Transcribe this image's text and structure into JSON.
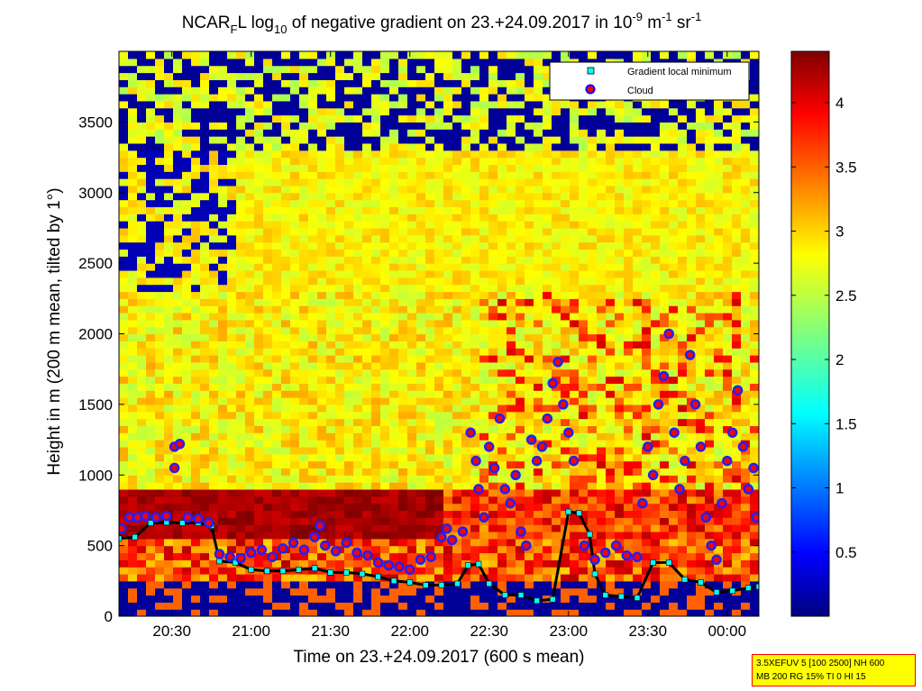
{
  "chart_data": {
    "type": "heatmap",
    "title": {
      "prefix": "NCAR",
      "sub1": "F",
      "mid1": "L log",
      "sub2": "10",
      "mid2": " of negative gradient on 23.+24.09.2017 in 10",
      "sup1": "-9",
      "mid3": " m",
      "sup2": "-1",
      "mid4": " sr",
      "sup3": "-1"
    },
    "xlabel": "Time on 23.+24.09.2017 (600 s mean)",
    "ylabel": "Height in m (200 m mean, tilted by 1°)",
    "x_ticks": [
      "20:30",
      "21:00",
      "21:30",
      "22:00",
      "22:30",
      "23:00",
      "23:30",
      "00:00"
    ],
    "x_tick_minutes": [
      1230,
      1260,
      1290,
      1320,
      1350,
      1380,
      1410,
      1440
    ],
    "xlim_minutes": [
      1210,
      1452
    ],
    "y_ticks": [
      0,
      500,
      1000,
      1500,
      2000,
      2500,
      3000,
      3500
    ],
    "ylim": [
      0,
      4000
    ],
    "colorbar": {
      "ticks": [
        0.5,
        1,
        1.5,
        2,
        2.5,
        3,
        3.5,
        4
      ],
      "range": [
        0,
        4.4
      ],
      "colormap": "jet"
    },
    "legend": {
      "position": "top-right",
      "entries": [
        {
          "label": "Gradient local minimum",
          "marker": "cyan-square"
        },
        {
          "label": "Cloud",
          "marker": "red-blue-circle"
        }
      ]
    },
    "series": [
      {
        "name": "Gradient local minimum",
        "points": [
          {
            "t": 1210,
            "h": 550
          },
          {
            "t": 1216,
            "h": 560
          },
          {
            "t": 1222,
            "h": 660
          },
          {
            "t": 1228,
            "h": 665
          },
          {
            "t": 1234,
            "h": 660
          },
          {
            "t": 1240,
            "h": 660
          },
          {
            "t": 1245,
            "h": 640
          },
          {
            "t": 1248,
            "h": 390
          },
          {
            "t": 1254,
            "h": 380
          },
          {
            "t": 1260,
            "h": 330
          },
          {
            "t": 1266,
            "h": 320
          },
          {
            "t": 1272,
            "h": 320
          },
          {
            "t": 1278,
            "h": 330
          },
          {
            "t": 1284,
            "h": 340
          },
          {
            "t": 1290,
            "h": 310
          },
          {
            "t": 1296,
            "h": 310
          },
          {
            "t": 1302,
            "h": 300
          },
          {
            "t": 1308,
            "h": 280
          },
          {
            "t": 1314,
            "h": 250
          },
          {
            "t": 1320,
            "h": 240
          },
          {
            "t": 1326,
            "h": 220
          },
          {
            "t": 1332,
            "h": 220
          },
          {
            "t": 1338,
            "h": 230
          },
          {
            "t": 1342,
            "h": 360
          },
          {
            "t": 1346,
            "h": 370
          },
          {
            "t": 1350,
            "h": 230
          },
          {
            "t": 1356,
            "h": 150
          },
          {
            "t": 1362,
            "h": 150
          },
          {
            "t": 1368,
            "h": 110
          },
          {
            "t": 1374,
            "h": 120
          },
          {
            "t": 1380,
            "h": 740
          },
          {
            "t": 1384,
            "h": 730
          },
          {
            "t": 1388,
            "h": 580
          },
          {
            "t": 1390,
            "h": 300
          },
          {
            "t": 1394,
            "h": 150
          },
          {
            "t": 1400,
            "h": 140
          },
          {
            "t": 1406,
            "h": 130
          },
          {
            "t": 1412,
            "h": 380
          },
          {
            "t": 1418,
            "h": 380
          },
          {
            "t": 1424,
            "h": 260
          },
          {
            "t": 1430,
            "h": 240
          },
          {
            "t": 1436,
            "h": 170
          },
          {
            "t": 1442,
            "h": 180
          },
          {
            "t": 1448,
            "h": 200
          },
          {
            "t": 1452,
            "h": 210
          }
        ]
      },
      {
        "name": "Cloud",
        "points": [
          {
            "t": 1211,
            "h": 620
          },
          {
            "t": 1214,
            "h": 700
          },
          {
            "t": 1217,
            "h": 700
          },
          {
            "t": 1220,
            "h": 710
          },
          {
            "t": 1224,
            "h": 700
          },
          {
            "t": 1228,
            "h": 710
          },
          {
            "t": 1231,
            "h": 1200
          },
          {
            "t": 1231,
            "h": 1050
          },
          {
            "t": 1233,
            "h": 1220
          },
          {
            "t": 1236,
            "h": 700
          },
          {
            "t": 1240,
            "h": 690
          },
          {
            "t": 1244,
            "h": 660
          },
          {
            "t": 1248,
            "h": 440
          },
          {
            "t": 1252,
            "h": 420
          },
          {
            "t": 1256,
            "h": 410
          },
          {
            "t": 1260,
            "h": 450
          },
          {
            "t": 1264,
            "h": 470
          },
          {
            "t": 1268,
            "h": 420
          },
          {
            "t": 1272,
            "h": 480
          },
          {
            "t": 1276,
            "h": 520
          },
          {
            "t": 1280,
            "h": 470
          },
          {
            "t": 1284,
            "h": 560
          },
          {
            "t": 1286,
            "h": 640
          },
          {
            "t": 1288,
            "h": 500
          },
          {
            "t": 1292,
            "h": 460
          },
          {
            "t": 1296,
            "h": 520
          },
          {
            "t": 1300,
            "h": 450
          },
          {
            "t": 1304,
            "h": 430
          },
          {
            "t": 1308,
            "h": 380
          },
          {
            "t": 1312,
            "h": 360
          },
          {
            "t": 1316,
            "h": 350
          },
          {
            "t": 1320,
            "h": 330
          },
          {
            "t": 1324,
            "h": 400
          },
          {
            "t": 1328,
            "h": 420
          },
          {
            "t": 1332,
            "h": 560
          },
          {
            "t": 1334,
            "h": 620
          },
          {
            "t": 1336,
            "h": 540
          },
          {
            "t": 1340,
            "h": 600
          },
          {
            "t": 1343,
            "h": 1300
          },
          {
            "t": 1345,
            "h": 1100
          },
          {
            "t": 1346,
            "h": 900
          },
          {
            "t": 1348,
            "h": 700
          },
          {
            "t": 1350,
            "h": 1200
          },
          {
            "t": 1352,
            "h": 1050
          },
          {
            "t": 1354,
            "h": 1400
          },
          {
            "t": 1356,
            "h": 900
          },
          {
            "t": 1358,
            "h": 800
          },
          {
            "t": 1360,
            "h": 1000
          },
          {
            "t": 1362,
            "h": 600
          },
          {
            "t": 1364,
            "h": 500
          },
          {
            "t": 1366,
            "h": 1250
          },
          {
            "t": 1368,
            "h": 1100
          },
          {
            "t": 1370,
            "h": 1200
          },
          {
            "t": 1372,
            "h": 1400
          },
          {
            "t": 1374,
            "h": 1650
          },
          {
            "t": 1376,
            "h": 1800
          },
          {
            "t": 1378,
            "h": 1500
          },
          {
            "t": 1380,
            "h": 1300
          },
          {
            "t": 1382,
            "h": 1100
          },
          {
            "t": 1386,
            "h": 500
          },
          {
            "t": 1390,
            "h": 400
          },
          {
            "t": 1394,
            "h": 450
          },
          {
            "t": 1398,
            "h": 500
          },
          {
            "t": 1402,
            "h": 430
          },
          {
            "t": 1406,
            "h": 420
          },
          {
            "t": 1408,
            "h": 800
          },
          {
            "t": 1410,
            "h": 1200
          },
          {
            "t": 1412,
            "h": 1000
          },
          {
            "t": 1414,
            "h": 1500
          },
          {
            "t": 1416,
            "h": 1700
          },
          {
            "t": 1418,
            "h": 2000
          },
          {
            "t": 1420,
            "h": 1300
          },
          {
            "t": 1422,
            "h": 900
          },
          {
            "t": 1424,
            "h": 1100
          },
          {
            "t": 1426,
            "h": 1850
          },
          {
            "t": 1428,
            "h": 1500
          },
          {
            "t": 1430,
            "h": 1200
          },
          {
            "t": 1432,
            "h": 700
          },
          {
            "t": 1434,
            "h": 500
          },
          {
            "t": 1436,
            "h": 400
          },
          {
            "t": 1438,
            "h": 800
          },
          {
            "t": 1440,
            "h": 1100
          },
          {
            "t": 1442,
            "h": 1300
          },
          {
            "t": 1444,
            "h": 1600
          },
          {
            "t": 1446,
            "h": 1200
          },
          {
            "t": 1448,
            "h": 900
          },
          {
            "t": 1450,
            "h": 1050
          },
          {
            "t": 1451,
            "h": 700
          }
        ]
      }
    ]
  },
  "info_box": {
    "line1": "3.5XEFUV 5 [100 2500] NH 600",
    "line2": "MB 200 RG 15% TI 0 HI 15"
  }
}
